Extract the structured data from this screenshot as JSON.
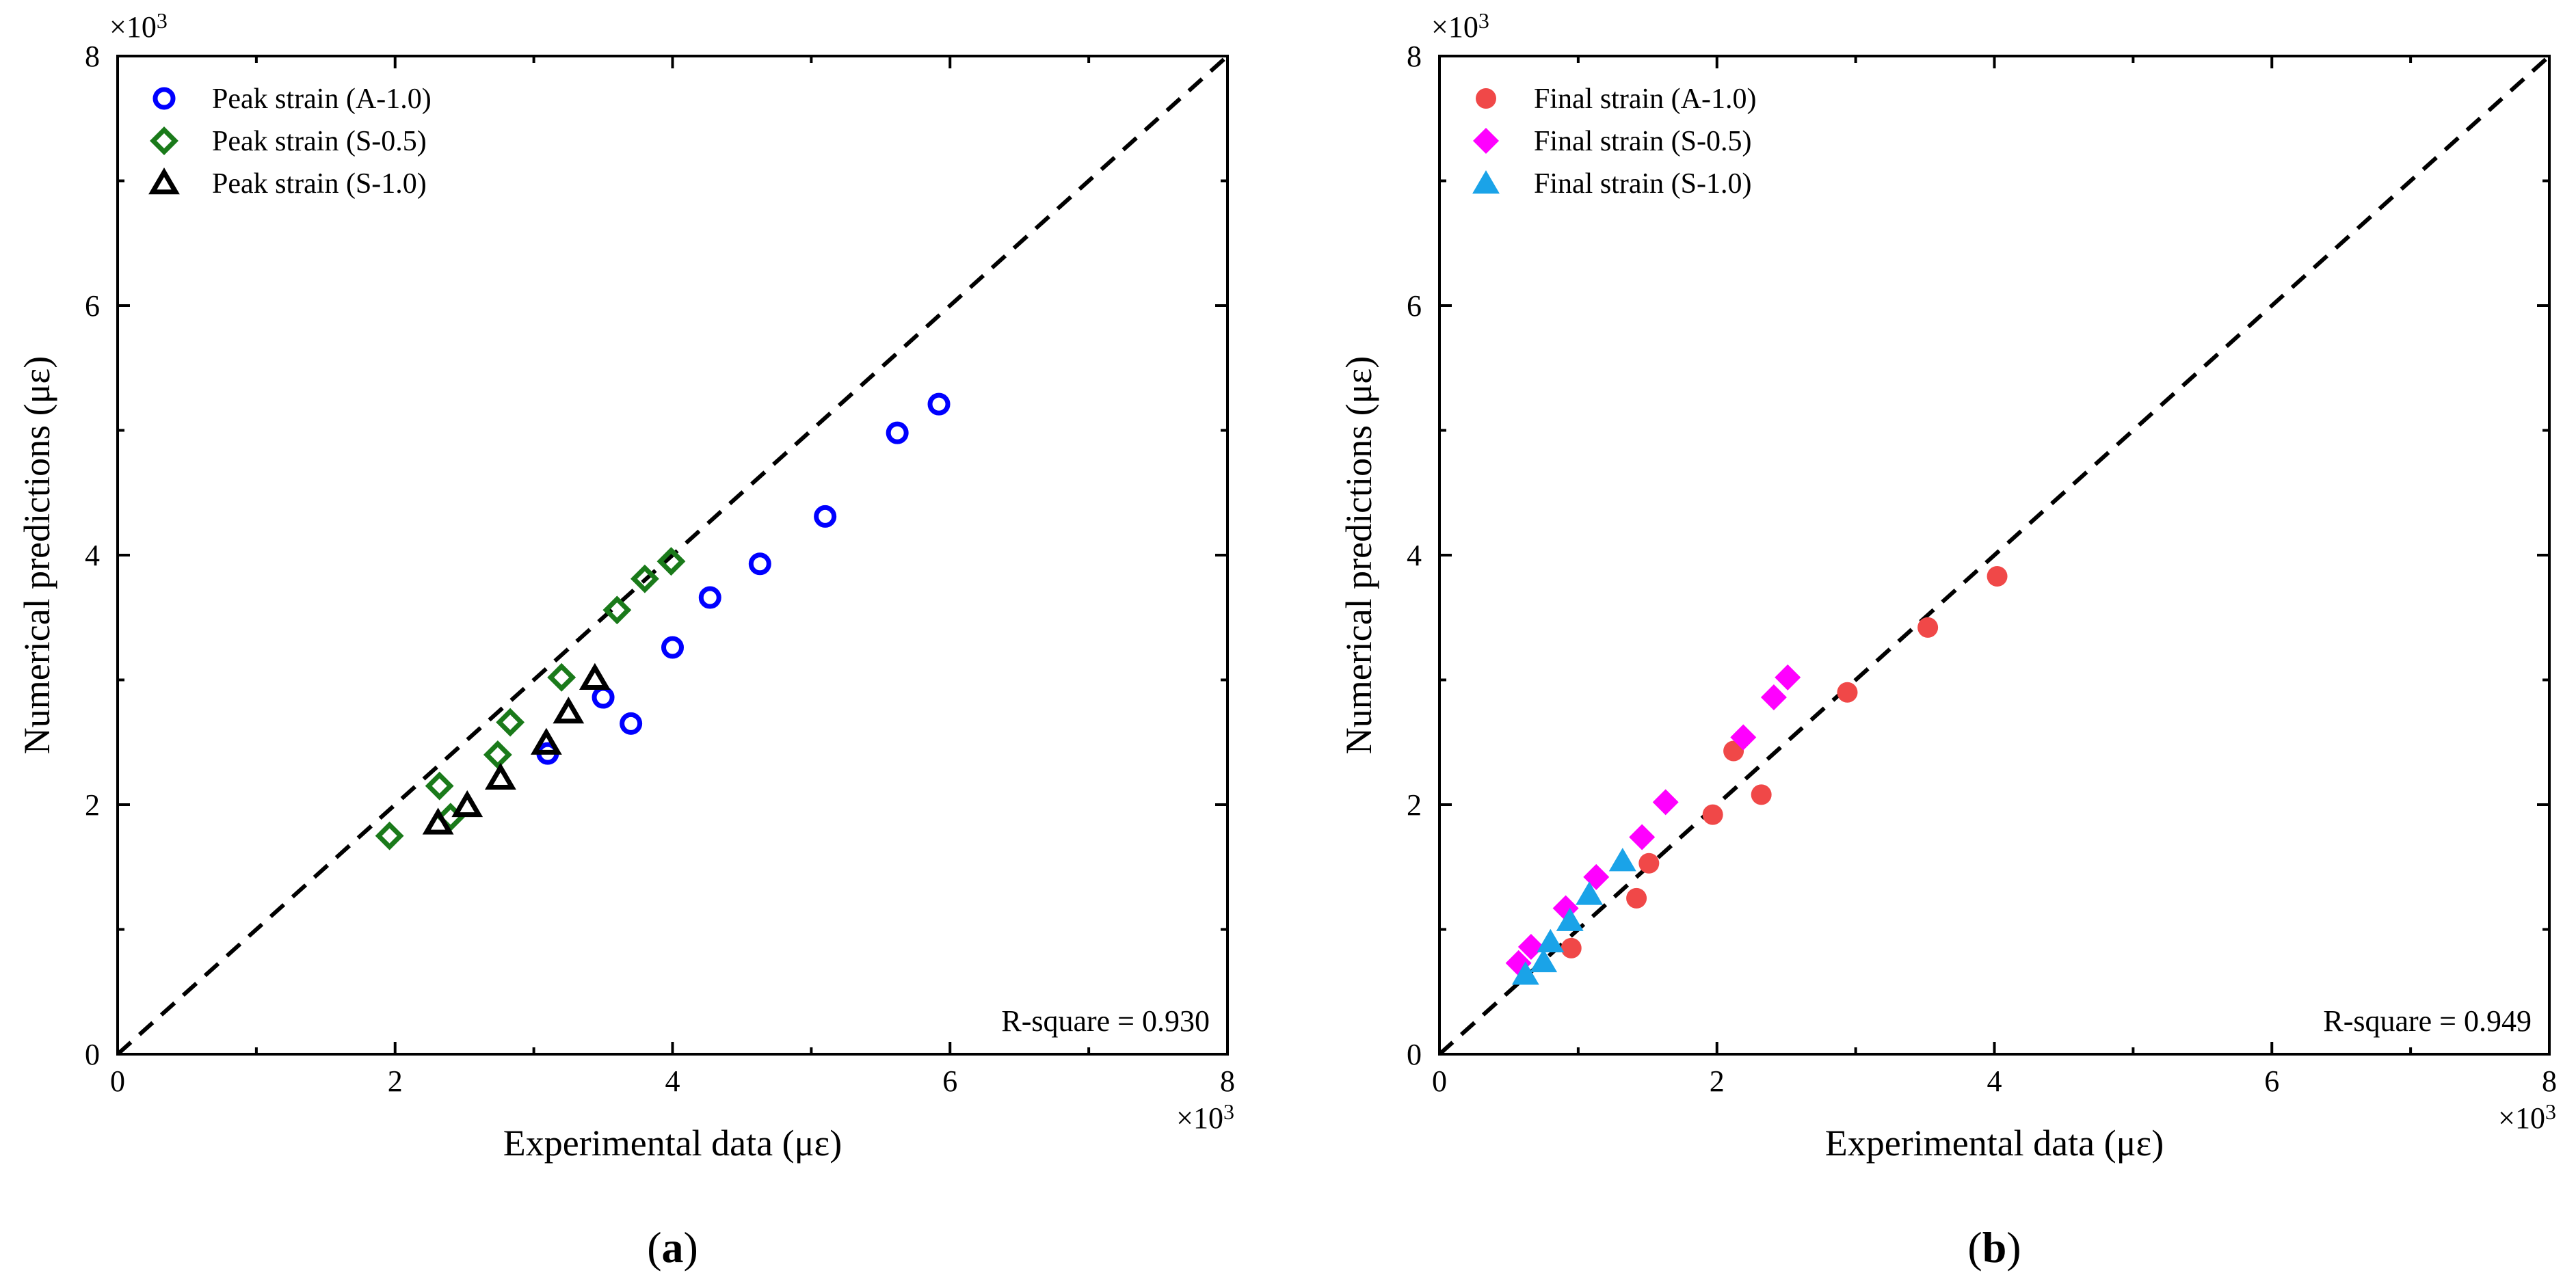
{
  "chart_data": [
    {
      "type": "scatter",
      "panel_label": "a",
      "xlabel": "Experimental data (με)",
      "ylabel": "Numerical predictions (με)",
      "x_multiplier": "×10",
      "y_multiplier": "×10",
      "multiplier_exponent": "3",
      "xlim": [
        0,
        8
      ],
      "ylim": [
        0,
        8
      ],
      "x_ticks": [
        "0",
        "2",
        "4",
        "6",
        "8"
      ],
      "y_ticks": [
        "0",
        "2",
        "4",
        "6",
        "8"
      ],
      "reference_line": "y = x (dashed)",
      "annotation": "R-square = 0.930",
      "legend_position": "top-left",
      "grid": false,
      "series": [
        {
          "name": "Peak strain (A-1.0)",
          "marker": "open-circle",
          "color": "#0000ff",
          "x": [
            3.1,
            3.5,
            3.7,
            4.0,
            4.27,
            4.63,
            5.1,
            5.62,
            5.92
          ],
          "y": [
            2.41,
            2.86,
            2.65,
            3.26,
            3.66,
            3.93,
            4.31,
            4.98,
            5.21
          ]
        },
        {
          "name": "Peak strain (S-0.5)",
          "marker": "open-diamond",
          "color": "#1a7a1a",
          "x": [
            1.96,
            2.32,
            2.4,
            2.74,
            2.83,
            3.2,
            3.6,
            3.8,
            3.99
          ],
          "y": [
            1.75,
            2.15,
            1.9,
            2.4,
            2.66,
            3.02,
            3.56,
            3.81,
            3.95
          ]
        },
        {
          "name": "Peak strain (S-1.0)",
          "marker": "open-triangle",
          "color": "#000000",
          "x": [
            2.31,
            2.52,
            2.76,
            3.09,
            3.25,
            3.44
          ],
          "y": [
            1.85,
            1.99,
            2.21,
            2.49,
            2.74,
            3.01
          ]
        }
      ]
    },
    {
      "type": "scatter",
      "panel_label": "b",
      "xlabel": "Experimental data (με)",
      "ylabel": "Numerical predictions (με)",
      "x_multiplier": "×10",
      "y_multiplier": "×10",
      "multiplier_exponent": "3",
      "xlim": [
        0,
        8
      ],
      "ylim": [
        0,
        8
      ],
      "x_ticks": [
        "0",
        "2",
        "4",
        "6",
        "8"
      ],
      "y_ticks": [
        "0",
        "2",
        "4",
        "6",
        "8"
      ],
      "reference_line": "y = x (dashed)",
      "annotation": "R-square = 0.949",
      "legend_position": "top-left",
      "grid": false,
      "series": [
        {
          "name": "Final strain (A-1.0)",
          "marker": "filled-circle",
          "color": "#f04848",
          "x": [
            0.95,
            1.42,
            1.51,
            1.97,
            2.12,
            2.32,
            2.94,
            3.52,
            4.02
          ],
          "y": [
            0.85,
            1.25,
            1.53,
            1.92,
            2.43,
            2.08,
            2.9,
            3.42,
            3.83
          ]
        },
        {
          "name": "Final strain (S-0.5)",
          "marker": "filled-diamond",
          "color": "#ff00ff",
          "x": [
            0.57,
            0.66,
            0.91,
            1.13,
            1.46,
            1.63,
            2.19,
            2.41,
            2.51
          ],
          "y": [
            0.73,
            0.86,
            1.17,
            1.42,
            1.74,
            2.02,
            2.54,
            2.86,
            3.02
          ]
        },
        {
          "name": "Final strain (S-1.0)",
          "marker": "filled-triangle",
          "color": "#1aa3e8",
          "x": [
            0.62,
            0.75,
            0.8,
            0.94,
            1.08,
            1.32
          ],
          "y": [
            0.64,
            0.74,
            0.9,
            1.07,
            1.28,
            1.55
          ]
        }
      ]
    }
  ]
}
